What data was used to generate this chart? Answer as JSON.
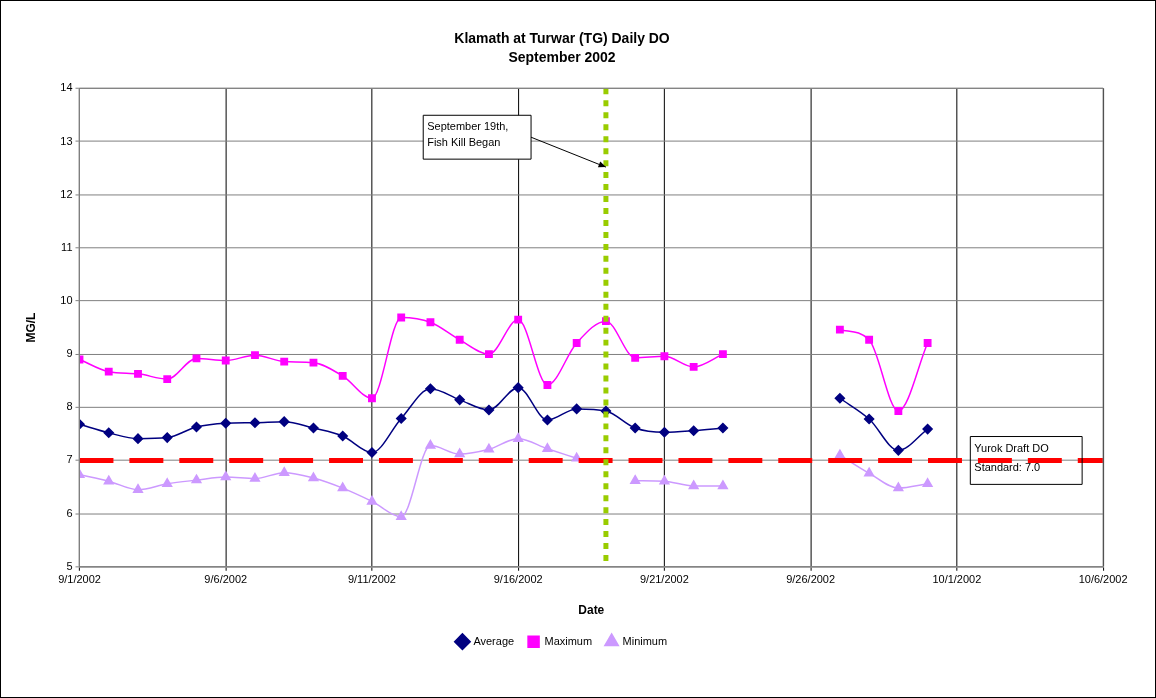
{
  "chart_data": {
    "type": "line",
    "title": "Klamath at Turwar (TG) Daily DO",
    "subtitle": "September 2002",
    "xlabel": "Date",
    "ylabel": "MG/L",
    "x": [
      "2002-09-01",
      "2002-09-02",
      "2002-09-03",
      "2002-09-04",
      "2002-09-05",
      "2002-09-06",
      "2002-09-07",
      "2002-09-08",
      "2002-09-09",
      "2002-09-10",
      "2002-09-11",
      "2002-09-12",
      "2002-09-13",
      "2002-09-14",
      "2002-09-15",
      "2002-09-16",
      "2002-09-17",
      "2002-09-18",
      "2002-09-19",
      "2002-09-20",
      "2002-09-21",
      "2002-09-22",
      "2002-09-23",
      "2002-09-24",
      "2002-09-25",
      "2002-09-26",
      "2002-09-27",
      "2002-09-28",
      "2002-09-29",
      "2002-09-30"
    ],
    "series": [
      {
        "name": "Average",
        "color": "#000080",
        "marker": "diamond",
        "values": [
          7.68,
          7.52,
          7.41,
          7.43,
          7.63,
          7.7,
          7.71,
          7.73,
          7.61,
          7.46,
          7.15,
          7.79,
          8.35,
          8.14,
          7.95,
          8.37,
          7.76,
          7.97,
          7.93,
          7.61,
          7.53,
          7.56,
          7.61,
          null,
          null,
          null,
          8.17,
          7.78,
          7.19,
          7.59
        ]
      },
      {
        "name": "Maximum",
        "color": "#ff00ff",
        "marker": "square",
        "values": [
          8.9,
          8.67,
          8.63,
          8.53,
          8.92,
          8.88,
          8.98,
          8.86,
          8.84,
          8.59,
          8.17,
          9.69,
          9.6,
          9.27,
          9.0,
          9.65,
          8.42,
          9.21,
          9.62,
          8.93,
          8.96,
          8.76,
          9.0,
          null,
          null,
          null,
          9.46,
          9.27,
          7.93,
          9.21
        ]
      },
      {
        "name": "Minimum",
        "color": "#cc99ff",
        "marker": "triangle",
        "values": [
          6.73,
          6.61,
          6.45,
          6.56,
          6.63,
          6.69,
          6.66,
          6.77,
          6.67,
          6.48,
          6.23,
          5.94,
          7.28,
          7.12,
          7.21,
          7.41,
          7.22,
          7.04,
          null,
          6.62,
          6.61,
          6.52,
          6.52,
          null,
          null,
          null,
          7.1,
          6.76,
          6.48,
          6.56
        ]
      }
    ],
    "xlim": [
      "2002-09-01",
      "2002-10-06"
    ],
    "xticks": [
      {
        "value": "2002-09-01",
        "label": "9/1/2002"
      },
      {
        "value": "2002-09-06",
        "label": "9/6/2002"
      },
      {
        "value": "2002-09-11",
        "label": "9/11/2002"
      },
      {
        "value": "2002-09-16",
        "label": "9/16/2002"
      },
      {
        "value": "2002-09-21",
        "label": "9/21/2002"
      },
      {
        "value": "2002-09-26",
        "label": "9/26/2002"
      },
      {
        "value": "2002-10-01",
        "label": "10/1/2002"
      },
      {
        "value": "2002-10-06",
        "label": "10/6/2002"
      }
    ],
    "ylim": [
      5,
      14
    ],
    "yticks": [
      5,
      6,
      7,
      8,
      9,
      10,
      11,
      12,
      13,
      14
    ],
    "ref_lines": [
      {
        "axis": "y",
        "value": 7,
        "label": "Yurok Draft DO Standard: 7.0",
        "color": "#ff0000",
        "line_style": "dashed"
      },
      {
        "axis": "x",
        "value": "2002-09-19",
        "color": "#99cc00",
        "line_style": "dotted"
      }
    ],
    "annotations": [
      "September 19th, Fish Kill Began"
    ],
    "grid": true,
    "legend": "bottom"
  }
}
